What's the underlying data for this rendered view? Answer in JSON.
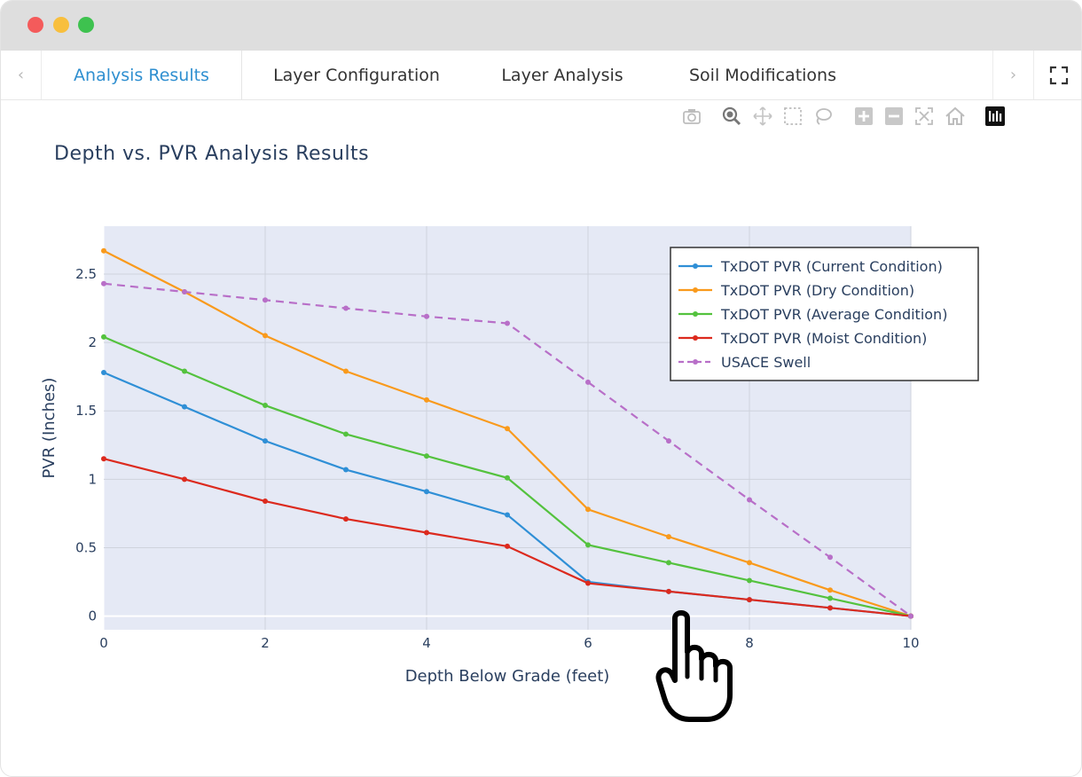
{
  "window": {
    "controls": [
      "close",
      "minimize",
      "maximize"
    ]
  },
  "tabs": {
    "items": [
      {
        "label": "Analysis Results",
        "active": true
      },
      {
        "label": "Layer Configuration",
        "active": false
      },
      {
        "label": "Layer Analysis",
        "active": false
      },
      {
        "label": "Soil Modifications",
        "active": false
      }
    ],
    "scroll_left_icon": "‹",
    "scroll_right_icon": "›",
    "fullscreen_icon": "expand-icon"
  },
  "modebar": {
    "icons": [
      "camera-icon",
      "zoom-icon",
      "pan-icon",
      "box-select-icon",
      "lasso-icon",
      "zoom-in-icon",
      "zoom-out-icon",
      "autoscale-icon",
      "home-icon",
      "plotly-logo-icon"
    ]
  },
  "colors": {
    "current": "#2f8fd6",
    "dry": "#f99a1c",
    "average": "#54c23e",
    "moist": "#dc2a1e",
    "usace": "#b86fc8",
    "active_tab": "#2f8fd0",
    "plot_bg": "#e5e9f5"
  },
  "chart_data": {
    "type": "line",
    "title": "Depth vs. PVR Analysis Results",
    "xlabel": "Depth Below Grade (feet)",
    "ylabel": "PVR (Inches)",
    "xlim": [
      0,
      10
    ],
    "ylim": [
      -0.1,
      2.85
    ],
    "xticks": [
      0,
      2,
      4,
      6,
      8,
      10
    ],
    "yticks": [
      0,
      0.5,
      1,
      1.5,
      2,
      2.5
    ],
    "grid": true,
    "legend_position": "top-right",
    "x": [
      0,
      1,
      2,
      3,
      4,
      5,
      6,
      7,
      8,
      9,
      10
    ],
    "series": [
      {
        "name": "TxDOT PVR (Current Condition)",
        "color_key": "current",
        "dash": false,
        "values": [
          1.78,
          1.53,
          1.28,
          1.07,
          0.91,
          0.74,
          0.25,
          0.18,
          0.12,
          0.06,
          0
        ]
      },
      {
        "name": "TxDOT PVR (Dry Condition)",
        "color_key": "dry",
        "dash": false,
        "values": [
          2.67,
          2.37,
          2.05,
          1.79,
          1.58,
          1.37,
          0.78,
          0.58,
          0.39,
          0.19,
          0
        ]
      },
      {
        "name": "TxDOT PVR (Average Condition)",
        "color_key": "average",
        "dash": false,
        "values": [
          2.04,
          1.79,
          1.54,
          1.33,
          1.17,
          1.01,
          0.52,
          0.39,
          0.26,
          0.13,
          0
        ]
      },
      {
        "name": "TxDOT PVR (Moist Condition)",
        "color_key": "moist",
        "dash": false,
        "values": [
          1.15,
          1.0,
          0.84,
          0.71,
          0.61,
          0.51,
          0.24,
          0.18,
          0.12,
          0.06,
          0
        ]
      },
      {
        "name": "USACE Swell",
        "color_key": "usace",
        "dash": true,
        "values": [
          2.43,
          2.37,
          2.31,
          2.25,
          2.19,
          2.14,
          1.71,
          1.28,
          0.85,
          0.43,
          0
        ]
      }
    ]
  }
}
